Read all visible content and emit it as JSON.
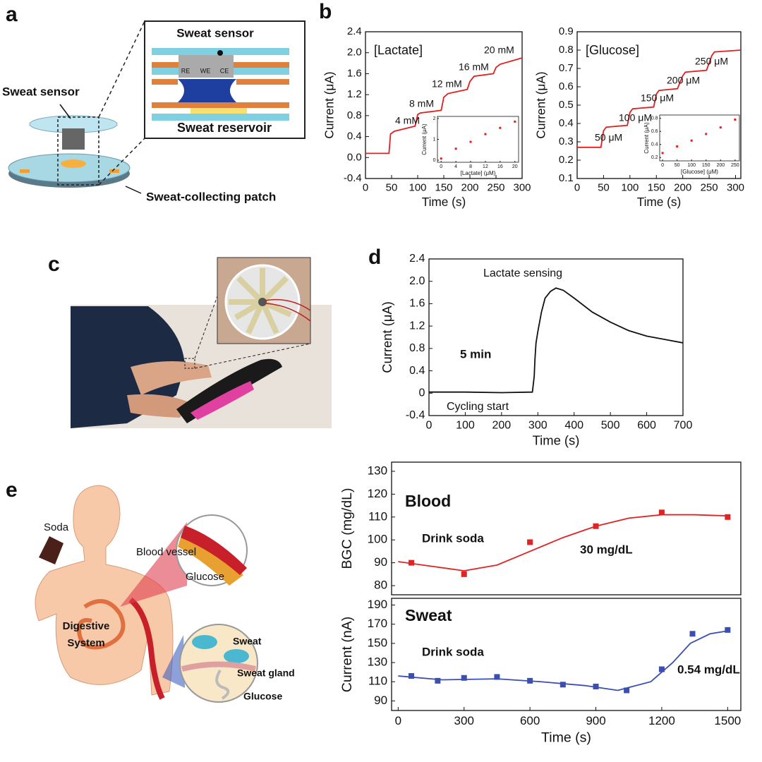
{
  "panel_labels": [
    "a",
    "b",
    "c",
    "d",
    "e"
  ],
  "diagram_a": {
    "inset_title": "Sweat sensor",
    "electrodes": [
      "RE",
      "WE",
      "CE"
    ],
    "inset_caption": "Sweat reservoir",
    "sensor_label": "Sweat sensor",
    "patch_label": "Sweat-collecting patch"
  },
  "illustration_e": {
    "soda": "Soda",
    "blood_vessel": "Blood vessel",
    "glucose_blood": "Glucose",
    "digestive": [
      "Digestive",
      "System"
    ],
    "sweat": "Sweat",
    "sweat_gland": "Sweat gland",
    "glucose_sweat": "Glucose"
  },
  "chart_data": [
    {
      "type": "line",
      "xlabel": "Time (s)",
      "ylabel": "Current (μA)",
      "xlim": [
        0,
        300
      ],
      "xticks": [
        0,
        50,
        100,
        150,
        200,
        250,
        300
      ],
      "ylim": [
        -0.4,
        2.4
      ],
      "yticks": [
        -0.4,
        {
          "value": 0,
          "label": "0.0"
        },
        0.4,
        0.8,
        1.2,
        1.6,
        {
          "value": 2,
          "label": "2.0"
        },
        2.4
      ],
      "annotations": [
        "[Lactate]",
        "4 mM",
        "8 mM",
        "12 mM",
        "16 mM",
        "20 mM"
      ],
      "series": [
        {
          "color": "#e02020",
          "x": [
            0,
            45,
            48,
            55,
            95,
            100,
            105,
            145,
            150,
            158,
            195,
            200,
            208,
            245,
            250,
            258,
            300
          ],
          "values": [
            0.08,
            0.08,
            0.45,
            0.5,
            0.6,
            0.82,
            0.85,
            0.9,
            1.15,
            1.22,
            1.3,
            1.45,
            1.55,
            1.6,
            1.72,
            1.78,
            1.9
          ]
        }
      ]
    },
    {
      "type": "scatter",
      "xlabel": "[Lactate] (μM)",
      "ylabel": "Current (μA)",
      "xlim": [
        -1,
        21
      ],
      "xticks": [
        0,
        4,
        8,
        12,
        16,
        20
      ],
      "ylim": [
        -0.1,
        2.1
      ],
      "yticks": [
        0,
        1,
        2
      ],
      "series": [
        {
          "color": "#e02020",
          "x": [
            0,
            4,
            8,
            12,
            16,
            20
          ],
          "values": [
            0.08,
            0.55,
            0.88,
            1.25,
            1.55,
            1.85
          ]
        }
      ]
    },
    {
      "type": "line",
      "xlabel": "Time (s)",
      "ylabel": "Current (μA)",
      "xlim": [
        0,
        310
      ],
      "xticks": [
        0,
        50,
        100,
        150,
        200,
        250,
        300
      ],
      "ylim": [
        0.1,
        0.9
      ],
      "yticks": [
        0.1,
        0.2,
        0.3,
        0.4,
        0.5,
        0.6,
        0.7,
        0.8,
        0.9
      ],
      "annotations": [
        "[Glucose]",
        "50 μM",
        "100 μM",
        "150 μM",
        "200 μM",
        "250 μM"
      ],
      "series": [
        {
          "color": "#e02020",
          "x": [
            0,
            45,
            50,
            55,
            95,
            100,
            105,
            145,
            150,
            155,
            190,
            200,
            205,
            245,
            255,
            260,
            310
          ],
          "values": [
            0.27,
            0.27,
            0.36,
            0.38,
            0.39,
            0.46,
            0.48,
            0.49,
            0.56,
            0.58,
            0.59,
            0.66,
            0.68,
            0.69,
            0.77,
            0.79,
            0.8
          ]
        }
      ]
    },
    {
      "type": "scatter",
      "xlabel": "[Glucose] (μM)",
      "ylabel": "Current (μA)",
      "xlim": [
        -10,
        265
      ],
      "xticks": [
        0,
        50,
        100,
        150,
        200,
        250
      ],
      "ylim": [
        0.15,
        0.85
      ],
      "yticks": [
        0.2,
        0.4,
        0.6,
        0.8
      ],
      "series": [
        {
          "color": "#e02020",
          "x": [
            0,
            50,
            100,
            150,
            200,
            250
          ],
          "values": [
            0.27,
            0.37,
            0.46,
            0.56,
            0.66,
            0.78
          ]
        }
      ]
    },
    {
      "type": "line",
      "xlabel": "Time (s)",
      "ylabel": "Current (μA)",
      "xlim": [
        0,
        700
      ],
      "xticks": [
        0,
        100,
        200,
        300,
        400,
        500,
        600,
        700
      ],
      "ylim": [
        -0.4,
        2.4
      ],
      "yticks": [
        -0.4,
        0,
        0.4,
        0.8,
        1.2,
        1.6,
        {
          "value": 2,
          "label": "2.0"
        },
        2.4
      ],
      "annotations": [
        "Lactate sensing",
        "5 min",
        "Cycling start"
      ],
      "series": [
        {
          "color": "#111111",
          "x": [
            0,
            100,
            200,
            285,
            290,
            292,
            295,
            300,
            310,
            320,
            335,
            350,
            370,
            400,
            450,
            500,
            550,
            600,
            650,
            700
          ],
          "values": [
            0.02,
            0.02,
            0.01,
            0.02,
            0.3,
            0.6,
            0.9,
            1.1,
            1.45,
            1.7,
            1.82,
            1.88,
            1.84,
            1.7,
            1.45,
            1.27,
            1.12,
            1.02,
            0.96,
            0.9
          ]
        }
      ]
    },
    {
      "type": "scatter",
      "ylabel": "BGC (mg/dL)",
      "xlim": [
        -30,
        1560
      ],
      "ylim": [
        76,
        134
      ],
      "yticks": [
        80,
        90,
        100,
        110,
        120,
        130
      ],
      "annotations": [
        "Blood",
        "Drink soda",
        "30 mg/dL"
      ],
      "series": [
        {
          "color": "#e02424",
          "x": [
            60,
            300,
            600,
            900,
            1200,
            1500
          ],
          "values": [
            90,
            85,
            99,
            106,
            112,
            110
          ]
        },
        {
          "color": "#e02424",
          "mode": "line",
          "x": [
            0,
            150,
            300,
            450,
            600,
            750,
            900,
            1050,
            1200,
            1350,
            1500
          ],
          "values": [
            90.5,
            88.5,
            86.5,
            89,
            95,
            101,
            106,
            109.5,
            111,
            111,
            110.5
          ]
        }
      ]
    },
    {
      "type": "scatter",
      "xlabel": "Time (s)",
      "ylabel": "Current (nA)",
      "xlim": [
        -30,
        1560
      ],
      "xticks": [
        0,
        300,
        600,
        900,
        1200,
        1500
      ],
      "ylim": [
        80,
        197
      ],
      "yticks": [
        90,
        110,
        130,
        150,
        170,
        190
      ],
      "annotations": [
        "Sweat",
        "Drink soda",
        "0.54 mg/dL"
      ],
      "series": [
        {
          "color": "#3a4fb0",
          "x": [
            60,
            180,
            300,
            450,
            600,
            750,
            900,
            1040,
            1200,
            1340,
            1500
          ],
          "values": [
            116,
            111,
            114,
            115,
            111,
            107,
            105,
            101,
            123,
            160,
            164
          ]
        },
        {
          "color": "#3a4fb0",
          "mode": "line",
          "x": [
            0,
            200,
            450,
            650,
            850,
            1000,
            1150,
            1250,
            1330,
            1420,
            1500
          ],
          "values": [
            116,
            112,
            113,
            110,
            106,
            101,
            110,
            130,
            150,
            160,
            163
          ]
        }
      ]
    }
  ]
}
